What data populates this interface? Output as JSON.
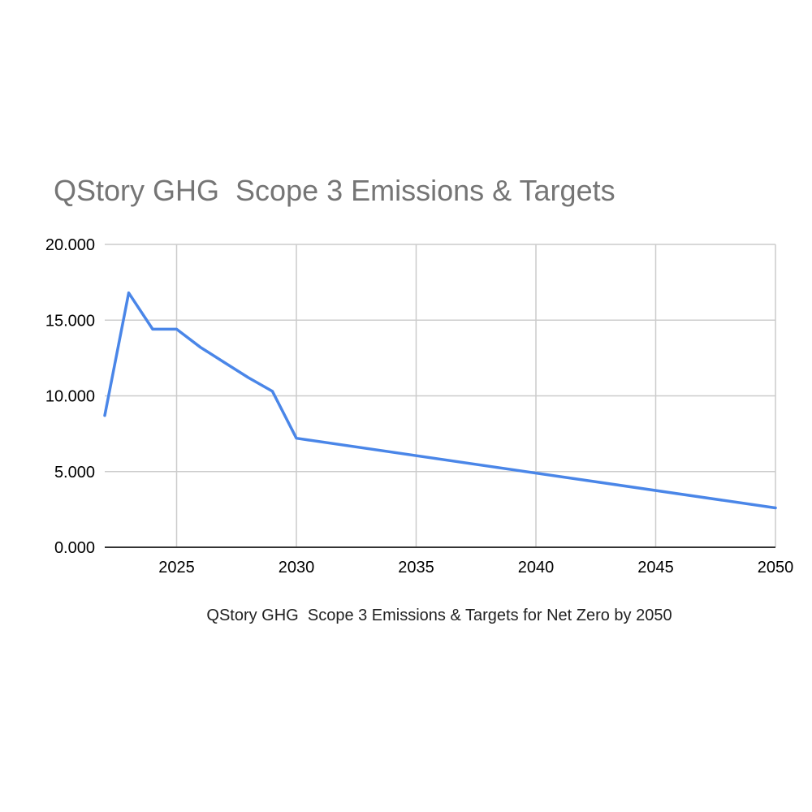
{
  "chart_data": {
    "type": "line",
    "title": "QStory GHG  Scope 3 Emissions & Targets",
    "xlabel": "QStory GHG  Scope 3 Emissions & Targets for Net Zero by 2050",
    "ylabel": "",
    "xlim": [
      2022,
      2050
    ],
    "ylim": [
      0,
      20
    ],
    "x_ticks": [
      2025,
      2030,
      2035,
      2040,
      2045,
      2050
    ],
    "x_tick_labels": [
      "2025",
      "2030",
      "2035",
      "2040",
      "2045",
      "2050"
    ],
    "y_ticks": [
      0,
      5,
      10,
      15,
      20
    ],
    "y_tick_labels": [
      "0.000",
      "5.000",
      "10.000",
      "15.000",
      "20.000"
    ],
    "grid": true,
    "legend": "none",
    "series": [
      {
        "color": "#4a86e8",
        "x": [
          2022,
          2023,
          2024,
          2025,
          2026,
          2027,
          2028,
          2029,
          2030,
          2050
        ],
        "y": [
          8.7,
          16.8,
          14.4,
          14.4,
          13.2,
          12.2,
          11.2,
          10.3,
          7.2,
          2.6
        ]
      }
    ]
  }
}
